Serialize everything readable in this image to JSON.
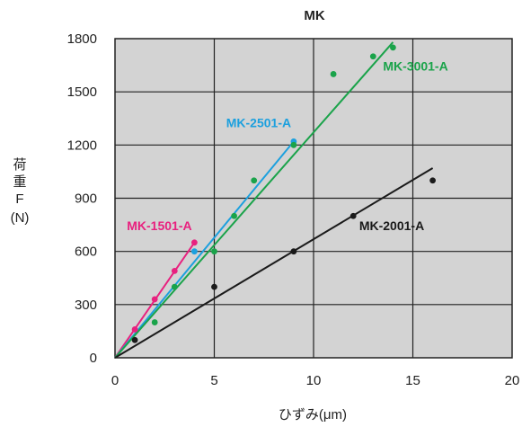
{
  "chart_data": {
    "type": "scatter",
    "title": "MK",
    "xlabel": "ひずみ(μm)",
    "ylabel": [
      "荷",
      "重",
      "F",
      "(N)"
    ],
    "xlim": [
      0,
      20
    ],
    "ylim": [
      0,
      1800
    ],
    "xticks": [
      0,
      5,
      10,
      15,
      20
    ],
    "yticks": [
      0,
      300,
      600,
      900,
      1200,
      1500,
      1800
    ],
    "grid": true,
    "background": "#d3d3d3",
    "series": [
      {
        "name": "MK-1501-A",
        "color": "#e8217f",
        "points": [
          [
            1,
            160
          ],
          [
            2,
            330
          ],
          [
            3,
            490
          ],
          [
            4,
            650
          ]
        ],
        "fit": [
          [
            0,
            0
          ],
          [
            4,
            650
          ]
        ]
      },
      {
        "name": "MK-2501-A",
        "color": "#1ca0de",
        "points": [
          [
            4,
            600
          ],
          [
            9,
            1220
          ]
        ],
        "fit": [
          [
            0,
            0
          ],
          [
            9,
            1220
          ]
        ]
      },
      {
        "name": "MK-3001-A",
        "color": "#1aa34a",
        "points": [
          [
            2,
            200
          ],
          [
            3,
            400
          ],
          [
            5,
            600
          ],
          [
            6,
            800
          ],
          [
            7,
            1000
          ],
          [
            9,
            1200
          ],
          [
            11,
            1600
          ],
          [
            13,
            1700
          ],
          [
            14,
            1750
          ]
        ],
        "fit": [
          [
            0,
            0
          ],
          [
            14,
            1780
          ]
        ]
      },
      {
        "name": "MK-2001-A",
        "color": "#1a1a1a",
        "points": [
          [
            1,
            100
          ],
          [
            5,
            400
          ],
          [
            9,
            600
          ],
          [
            12,
            800
          ],
          [
            16,
            1000
          ]
        ],
        "fit": [
          [
            0,
            0
          ],
          [
            16,
            1070
          ]
        ]
      }
    ]
  }
}
